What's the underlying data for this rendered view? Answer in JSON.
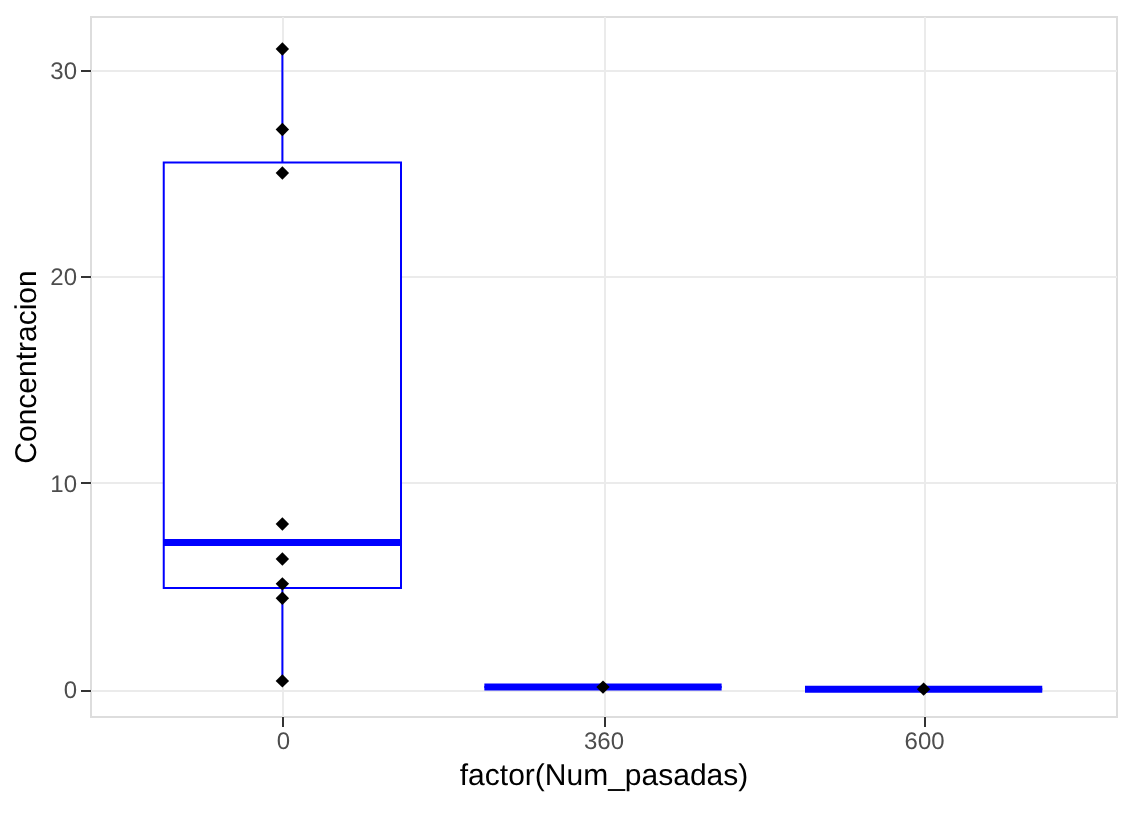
{
  "chart_data": {
    "type": "box",
    "xlabel": "factor(Num_pasadas)",
    "ylabel": "Concentracion",
    "categories": [
      "0",
      "360",
      "600"
    ],
    "ylim": [
      -1.3,
      32.6
    ],
    "yticks": [
      0,
      10,
      20,
      30
    ],
    "grid": true,
    "series": [
      {
        "color": "#0000ff",
        "boxes": [
          {
            "low": 0.4,
            "q1": 4.9,
            "median": 7.1,
            "q3": 25.5,
            "high": 31.0
          },
          {
            "low": 0.1,
            "q1": 0.1,
            "median": 0.1,
            "q3": 0.1,
            "high": 0.1
          },
          {
            "low": 0.0,
            "q1": 0.0,
            "median": 0.0,
            "q3": 0.0,
            "high": 0.0
          }
        ]
      },
      {
        "type": "scatter",
        "color": "#000000",
        "marker": "diamond",
        "x": [
          "0",
          "0",
          "0",
          "0",
          "0",
          "0",
          "0",
          "0",
          "360",
          "600"
        ],
        "values": [
          31.0,
          27.1,
          25.0,
          8.0,
          6.3,
          5.1,
          4.4,
          0.4,
          0.1,
          0.0
        ]
      }
    ]
  }
}
